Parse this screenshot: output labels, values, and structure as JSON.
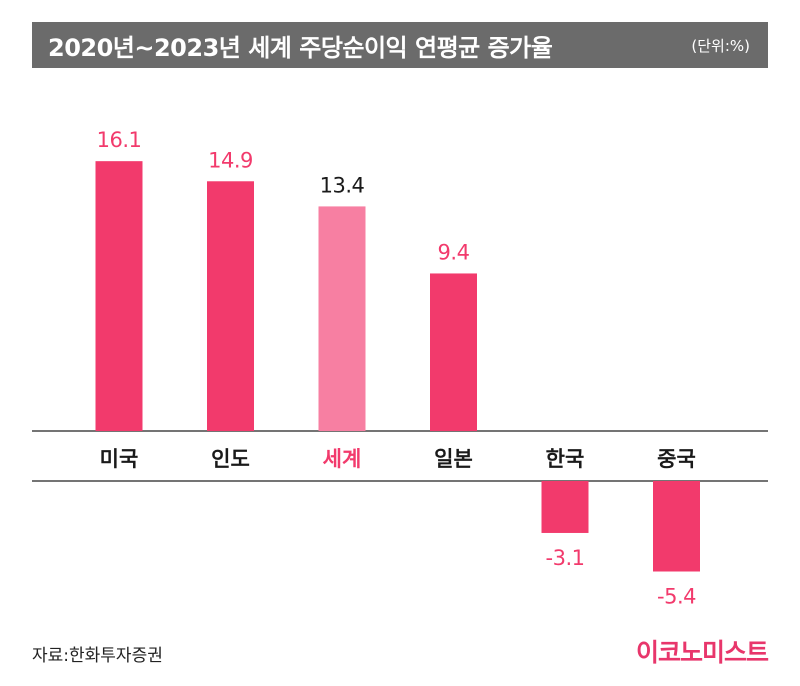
{
  "title": "2020년~2023년 세계 주당순이익 연평균 증가율",
  "unit": "(단위:%)",
  "source": "자료:한화투자증권",
  "brand": "이코노미스트",
  "colors": {
    "bar": "#f23a6c",
    "highlight_bar": "#f77fa2",
    "highlight_label": "#f23a6c",
    "value_positive": "#f23a6c",
    "value_highlight": "#1a1a1a",
    "category_label": "#1a1a1a",
    "title_bg": "#6b6b6b"
  },
  "chart_data": {
    "type": "bar",
    "categories": [
      "미국",
      "인도",
      "세계",
      "일본",
      "한국",
      "중국"
    ],
    "values": [
      16.1,
      14.9,
      13.4,
      9.4,
      -3.1,
      -5.4
    ],
    "value_labels": [
      "16.1",
      "14.9",
      "13.4",
      "9.4",
      "-3.1",
      "-5.4"
    ],
    "highlight_index": 2,
    "title": "2020년~2023년 세계 주당순이익 연평균 증가율",
    "ylabel": "",
    "xlabel": "",
    "ylim": [
      -6,
      17
    ],
    "grid": false,
    "legend": "none"
  }
}
